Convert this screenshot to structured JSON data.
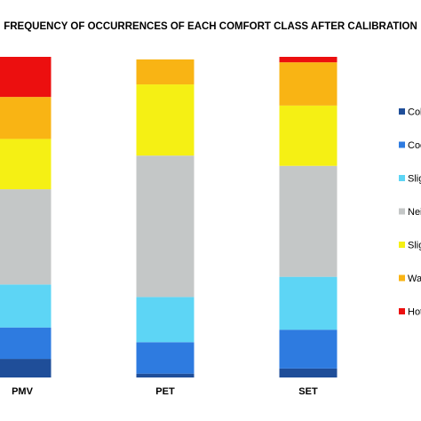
{
  "chart_data": {
    "type": "bar",
    "stacked": true,
    "title": "FREQUENCY OF OCCURRENCES OF EACH COMFORT CLASS AFTER CALIBRATION",
    "categories": [
      "PMV",
      "PET",
      "SET"
    ],
    "ylim": [
      0,
      100
    ],
    "grid": false,
    "legend_position": "right",
    "series": [
      {
        "name": "Col",
        "color": "#1f4e99",
        "values": [
          5.8,
          1.2,
          2.8
        ]
      },
      {
        "name": "Coo",
        "color": "#2e7be0",
        "values": [
          9.8,
          9.8,
          12.1
        ]
      },
      {
        "name": "Slig",
        "color": "#5dd5f5",
        "values": [
          13.4,
          14.1,
          16.5
        ]
      },
      {
        "name": "Nei",
        "color": "#c4c7c7",
        "values": [
          29.7,
          44.1,
          34.6
        ]
      },
      {
        "name": "Slig",
        "color": "#f5f014",
        "values": [
          15.7,
          22.2,
          18.8
        ]
      },
      {
        "name": "Wa",
        "color": "#f9b414",
        "values": [
          13.1,
          7.8,
          13.5
        ]
      },
      {
        "name": "Hot",
        "color": "#ec0f0f",
        "values": [
          12.5,
          0.0,
          1.7
        ]
      }
    ]
  }
}
